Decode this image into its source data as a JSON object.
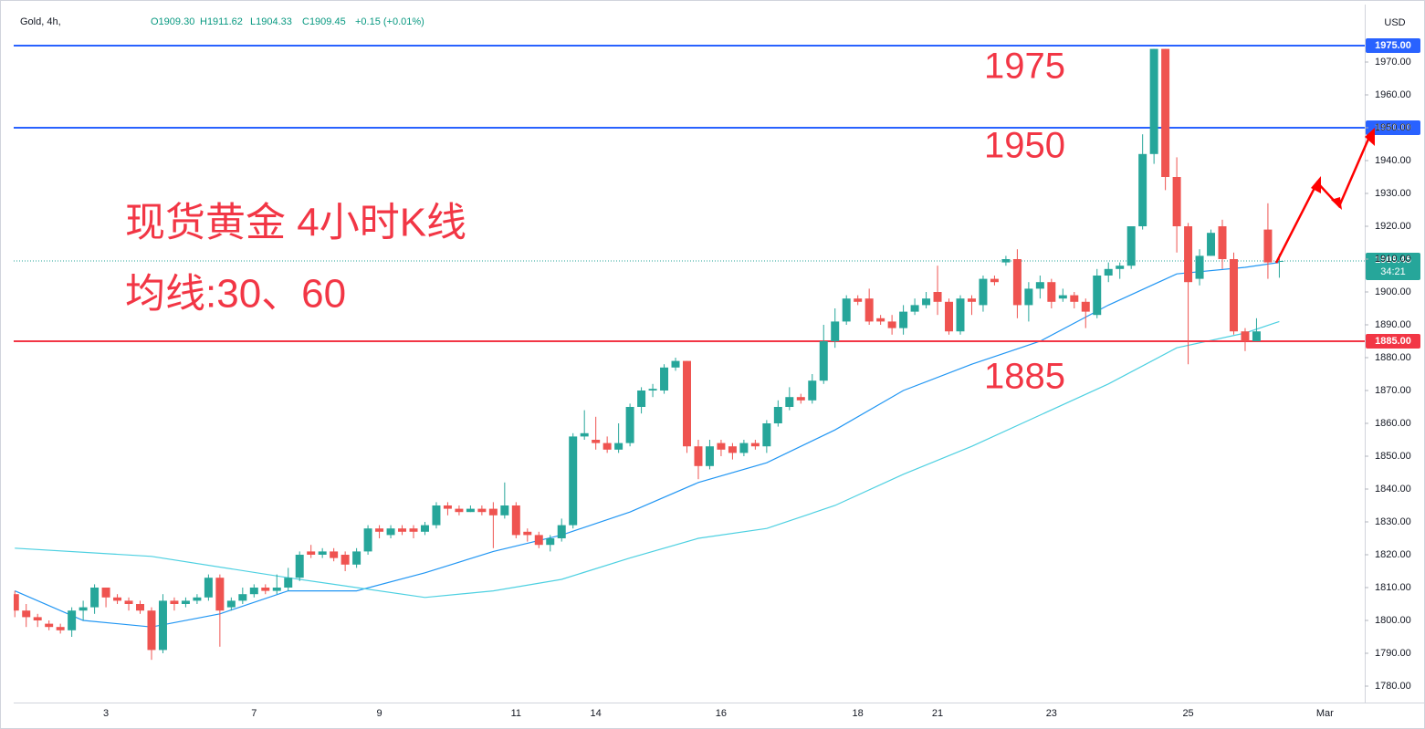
{
  "chart_data": {
    "type": "candlestick",
    "symbol": "Gold, 4h,",
    "legend": [
      "O1909.30",
      "H1911.62",
      "L1904.33",
      "C1909.45",
      "+0.15 (+0.01%)"
    ],
    "currency": "USD",
    "up_color": "#26a69a",
    "down_color": "#ef5350",
    "grid": false,
    "categories": [
      null,
      null,
      null,
      null,
      null,
      null,
      null,
      null,
      "3",
      null,
      null,
      null,
      null,
      null,
      null,
      null,
      null,
      null,
      null,
      null,
      null,
      "7",
      null,
      null,
      null,
      null,
      null,
      null,
      null,
      null,
      null,
      null,
      "9",
      null,
      null,
      null,
      null,
      null,
      null,
      null,
      null,
      null,
      null,
      null,
      "11",
      null,
      null,
      null,
      null,
      null,
      null,
      "14",
      null,
      null,
      null,
      null,
      null,
      null,
      null,
      null,
      null,
      null,
      "16",
      null,
      null,
      null,
      null,
      null,
      null,
      null,
      null,
      null,
      null,
      null,
      "18",
      null,
      null,
      null,
      null,
      null,
      null,
      "21",
      null,
      null,
      null,
      null,
      null,
      null,
      null,
      null,
      null,
      "23",
      null,
      null,
      null,
      null,
      null,
      null,
      null,
      null,
      null,
      null,
      null,
      "25",
      null,
      null,
      null,
      null,
      null,
      null,
      null,
      null,
      null,
      null,
      null,
      "Mar",
      null,
      null,
      null
    ],
    "open": [
      1808,
      1803,
      1801,
      1799,
      1798,
      1797,
      1803,
      1804,
      1810,
      1807,
      1806,
      1805,
      1803,
      1791,
      1806,
      1805,
      1806,
      1807,
      1813,
      1804,
      1806,
      1808,
      1810,
      1809,
      1810,
      1813,
      1821,
      1820,
      1821,
      1820,
      1817,
      1821,
      1828,
      1826,
      1828,
      1828,
      1827,
      1829,
      1835,
      1834,
      1833,
      1834,
      1834,
      1832,
      1835,
      1827,
      1826,
      1823,
      1825,
      1829,
      1856,
      1855,
      1854,
      1852,
      1854,
      1865,
      1870,
      1870,
      1877,
      1879,
      1853,
      1847,
      1854,
      1853,
      1851,
      1854,
      1853,
      1860,
      1865,
      1868,
      1867,
      1873,
      1885,
      1891,
      1898,
      1898,
      1892,
      1891,
      1889,
      1894,
      1896,
      1900,
      1897,
      1888,
      1898,
      1896,
      1904,
      1909,
      1910,
      1896,
      1901,
      1903,
      1898,
      1899,
      1897,
      1893,
      1905,
      1907,
      1908,
      1920,
      1942,
      1974,
      1935,
      1920,
      1904,
      1911,
      1920,
      1910,
      1888,
      1885,
      1919,
      1909.3,
      null,
      null,
      null,
      null,
      null,
      null,
      null
    ],
    "high": [
      1809,
      1805,
      1802,
      1800,
      1799,
      1804,
      1806,
      1811,
      1810,
      1808,
      1807,
      1806,
      1804,
      1808,
      1807,
      1807,
      1808,
      1814,
      1814,
      1807,
      1810,
      1811,
      1811,
      1814,
      1816,
      1821,
      1823,
      1822,
      1822,
      1821,
      1822,
      1829,
      1829,
      1829,
      1829,
      1829,
      1830,
      1836,
      1836,
      1835,
      1835,
      1835,
      1836,
      1842,
      1836,
      1828,
      1827,
      1826,
      1831,
      1857,
      1864,
      1862,
      1856,
      1860,
      1866,
      1871,
      1872,
      1878,
      1880,
      1879,
      1855,
      1855,
      1855,
      1854,
      1855,
      1855,
      1861,
      1867,
      1871,
      1869,
      1875,
      1890,
      1895,
      1899,
      1899,
      1901,
      1893,
      1893,
      1896,
      1898,
      1900,
      1908,
      1898,
      1899,
      1899,
      1905,
      1905,
      1911,
      1913,
      1903,
      1905,
      1904,
      1901,
      1900,
      1898,
      1907,
      1909,
      1909,
      1920,
      1948,
      1974,
      1974,
      1941,
      1921,
      1913,
      1919,
      1922,
      1912,
      1889,
      1892,
      1927,
      1911.62,
      null,
      null,
      null,
      null,
      null,
      null,
      null
    ],
    "low": [
      1801,
      1798,
      1798,
      1797,
      1796,
      1795,
      1800,
      1802,
      1804,
      1805,
      1803,
      1802,
      1788,
      1790,
      1803,
      1804,
      1805,
      1806,
      1792,
      1803,
      1805,
      1807,
      1808,
      1808,
      1809,
      1812,
      1819,
      1819,
      1818,
      1815,
      1816,
      1820,
      1825,
      1825,
      1826,
      1825,
      1826,
      1828,
      1832,
      1832,
      1833,
      1832,
      1822,
      1831,
      1825,
      1824,
      1822,
      1821,
      1824,
      1828,
      1855,
      1852,
      1851,
      1851,
      1853,
      1863,
      1868,
      1869,
      1876,
      1851,
      1843,
      1846,
      1850,
      1849,
      1850,
      1852,
      1851,
      1859,
      1864,
      1866,
      1866,
      1872,
      1883,
      1890,
      1896,
      1890,
      1890,
      1887,
      1887,
      1893,
      1895,
      1893,
      1887,
      1887,
      1893,
      1894,
      1902,
      1908,
      1892,
      1891,
      1898,
      1895,
      1897,
      1895,
      1889,
      1892,
      1903,
      1904,
      1907,
      1919,
      1939,
      1931,
      1912,
      1878,
      1902,
      1911,
      1907,
      1887,
      1882,
      1885,
      1904,
      1904.33,
      null,
      null,
      null,
      null,
      null,
      null,
      null
    ],
    "close": [
      1803,
      1801,
      1800,
      1798,
      1797,
      1803,
      1804,
      1810,
      1807,
      1806,
      1805,
      1803,
      1791,
      1806,
      1805,
      1806,
      1807,
      1813,
      1803,
      1806,
      1808,
      1810,
      1809,
      1810,
      1813,
      1820,
      1820,
      1821,
      1819,
      1817,
      1821,
      1828,
      1827,
      1828,
      1827,
      1827,
      1829,
      1835,
      1834,
      1833,
      1834,
      1833,
      1832,
      1835,
      1826,
      1826,
      1823,
      1825,
      1829,
      1856,
      1857,
      1854,
      1852,
      1854,
      1865,
      1870,
      1870.5,
      1877,
      1879,
      1853,
      1847,
      1853,
      1852,
      1851,
      1854,
      1853,
      1860,
      1865,
      1868,
      1867,
      1873,
      1885,
      1891,
      1898,
      1897,
      1891,
      1891,
      1889,
      1894,
      1896,
      1898,
      1897,
      1888,
      1898,
      1897,
      1904,
      1903,
      1910,
      1896,
      1901,
      1903,
      1897,
      1899,
      1897,
      1894,
      1905,
      1907,
      1908,
      1920,
      1942,
      1974,
      1935,
      1920,
      1903,
      1911,
      1918,
      1910,
      1888,
      1885,
      1888,
      1909,
      1909.45,
      null,
      null,
      null,
      null,
      null,
      null,
      null
    ],
    "ylim": [
      1775,
      1987.5
    ],
    "yticks": [
      {
        "value": 1780,
        "label": "1780.00"
      },
      {
        "value": 1790,
        "label": "1790.00"
      },
      {
        "value": 1800,
        "label": "1800.00"
      },
      {
        "value": 1810,
        "label": "1810.00"
      },
      {
        "value": 1820,
        "label": "1820.00"
      },
      {
        "value": 1830,
        "label": "1830.00"
      },
      {
        "value": 1840,
        "label": "1840.00"
      },
      {
        "value": 1850,
        "label": "1850.00"
      },
      {
        "value": 1860,
        "label": "1860.00"
      },
      {
        "value": 1870,
        "label": "1870.00"
      },
      {
        "value": 1880,
        "label": "1880.00"
      },
      {
        "value": 1890,
        "label": "1890.00"
      },
      {
        "value": 1900,
        "label": "1900.00"
      },
      {
        "value": 1910,
        "label": "1910.00"
      },
      {
        "value": 1920,
        "label": "1920.00"
      },
      {
        "value": 1930,
        "label": "1930.00"
      },
      {
        "value": 1940,
        "label": "1940.00"
      },
      {
        "value": 1950,
        "label": "1950.00"
      },
      {
        "value": 1960,
        "label": "1960.00"
      },
      {
        "value": 1970,
        "label": "1970.00"
      }
    ],
    "lines": [
      {
        "color": "#2196f3",
        "x": [
          0,
          6,
          12,
          18,
          24,
          30,
          36,
          42,
          48,
          54,
          60,
          66,
          72,
          78,
          84,
          90,
          96,
          102,
          108,
          111
        ],
        "values": [
          1809,
          1800,
          1798,
          1802,
          1809,
          1809,
          1814.5,
          1821,
          1826,
          1833,
          1842,
          1848,
          1858,
          1870,
          1878,
          1885,
          1896,
          1905.5,
          1907.5,
          1909
        ]
      },
      {
        "color": "#4dd0e1",
        "x": [
          0,
          12,
          24,
          36,
          42,
          48,
          54,
          60,
          66,
          72,
          78,
          84,
          90,
          96,
          102,
          108,
          111
        ],
        "values": [
          1822,
          1819.5,
          1813,
          1807,
          1809,
          1812.5,
          1819,
          1825,
          1828,
          1835,
          1844.5,
          1853,
          1862.5,
          1872,
          1883,
          1887.5,
          1891
        ]
      }
    ],
    "hlines": [
      {
        "value": 1975,
        "label": "1975.00",
        "color": "#2962ff"
      },
      {
        "value": 1950,
        "label": "1950.00",
        "color": "#2962ff"
      },
      {
        "value": 1885,
        "label": "1885.00",
        "color": "#f23645"
      }
    ],
    "last_price": {
      "value": 1909.45,
      "label": "1909.45",
      "countdown": "34:21",
      "color": "#26a69a"
    },
    "annotations": [
      "1975",
      "1950",
      "1885",
      "现货黄金 4小时K线",
      "均线:30、60"
    ]
  }
}
